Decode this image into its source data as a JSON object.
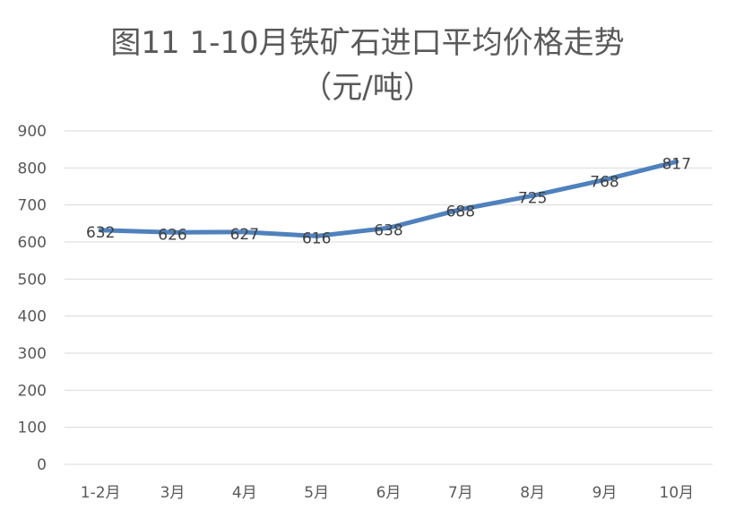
{
  "chart_data": {
    "type": "line",
    "title_line1": "图11  1-10月铁矿石进口平均价格走势",
    "title_line2": "（元/吨）",
    "categories": [
      "1-2月",
      "3月",
      "4月",
      "5月",
      "6月",
      "7月",
      "8月",
      "9月",
      "10月"
    ],
    "values": [
      632,
      626,
      627,
      616,
      638,
      688,
      725,
      768,
      817
    ],
    "ylim": [
      0,
      900
    ],
    "yticks": [
      0,
      100,
      200,
      300,
      400,
      500,
      600,
      700,
      800,
      900
    ],
    "grid": true,
    "legend": "none",
    "line_color": "#4F81BD",
    "grid_color": "#D9D9D9",
    "text_color": "#595959"
  }
}
